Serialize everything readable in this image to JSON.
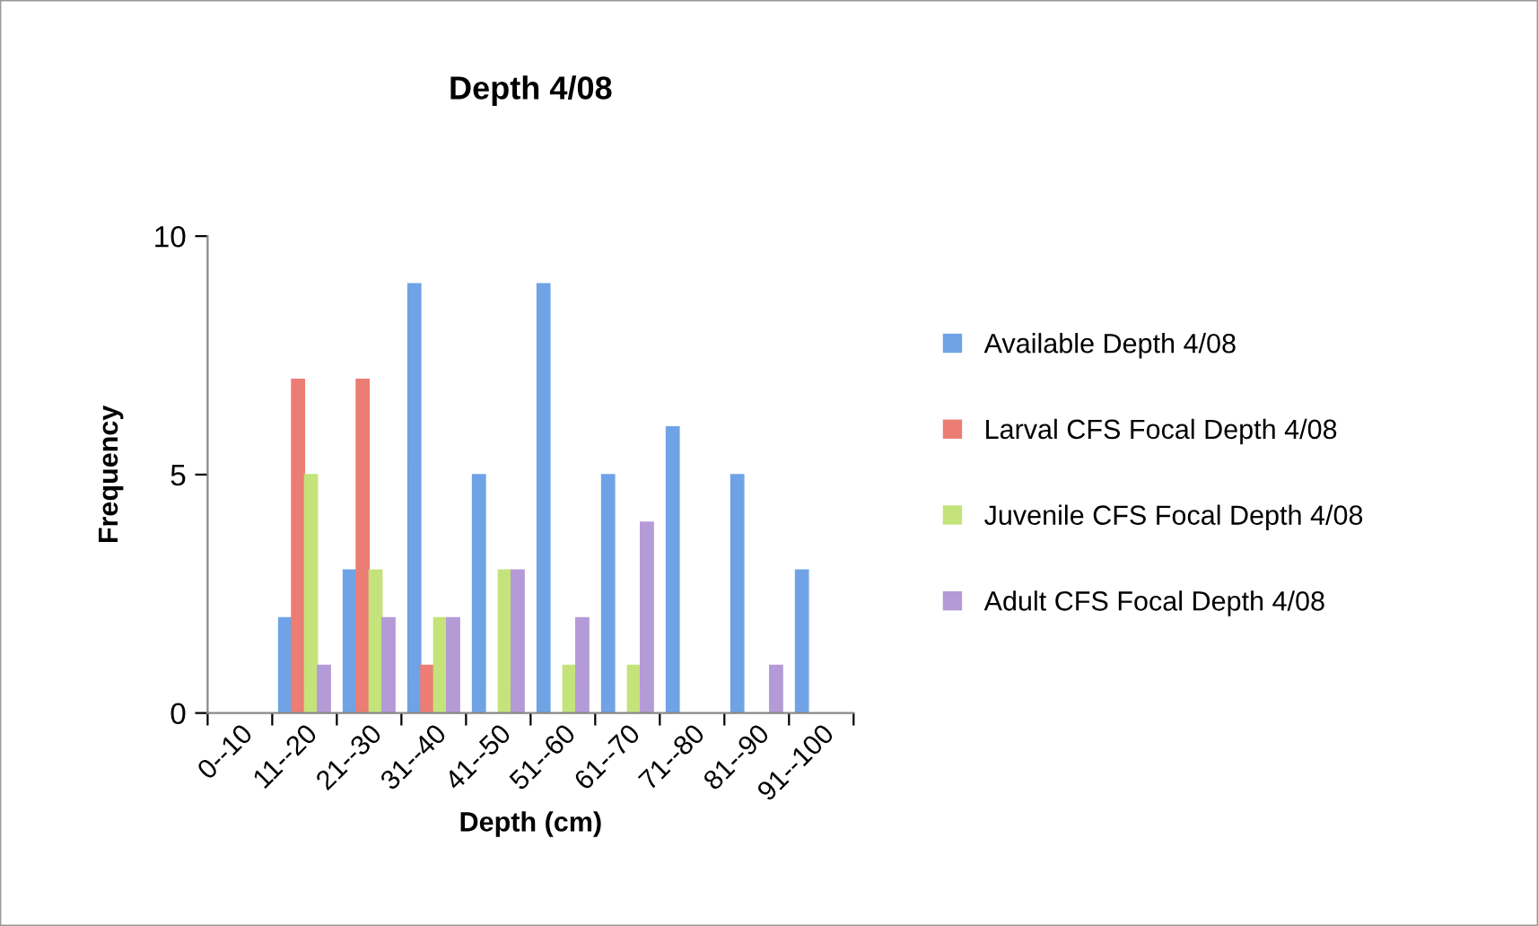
{
  "chart_data": {
    "type": "bar",
    "title": "Depth 4/08",
    "xlabel": "Depth (cm)",
    "ylabel": "Frequency",
    "categories": [
      "0--10",
      "11--20",
      "21--30",
      "31--40",
      "41--50",
      "51--60",
      "61--70",
      "71--80",
      "81--90",
      "91--100"
    ],
    "series": [
      {
        "name": "Available Depth 4/08",
        "color": "#6fa3e6",
        "values": [
          0,
          2,
          3,
          9,
          5,
          9,
          5,
          6,
          5,
          3
        ]
      },
      {
        "name": "Larval CFS Focal Depth 4/08",
        "color": "#ec7d75",
        "values": [
          0,
          7,
          7,
          1,
          0,
          0,
          0,
          0,
          0,
          0
        ]
      },
      {
        "name": "Juvenile CFS Focal Depth 4/08",
        "color": "#c4e37a",
        "values": [
          0,
          5,
          3,
          2,
          3,
          1,
          1,
          0,
          0,
          0
        ]
      },
      {
        "name": "Adult CFS Focal Depth 4/08",
        "color": "#b49ad6",
        "values": [
          0,
          1,
          2,
          2,
          3,
          2,
          4,
          0,
          1,
          0
        ]
      }
    ],
    "ylim": [
      0,
      10
    ],
    "yticks": [
      0,
      5,
      10
    ],
    "grid": false,
    "legend": "right"
  }
}
